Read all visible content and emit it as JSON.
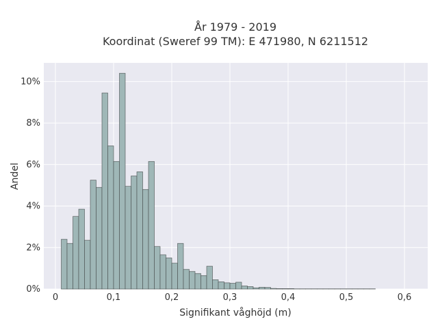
{
  "chart_data": {
    "type": "histogram",
    "title_line1": "År 1979 - 2019",
    "title_line2": "Koordinat (Sweref 99 TM): E 471980, N 6211512",
    "xlabel": "Signifikant våghöjd (m)",
    "ylabel": "Andel",
    "xlim": [
      -0.02,
      0.64
    ],
    "ylim": [
      0,
      0.109
    ],
    "x_ticks": [
      0,
      0.1,
      0.2,
      0.3,
      0.4,
      0.5,
      0.6
    ],
    "x_tick_labels": [
      "0",
      "0,1",
      "0,2",
      "0,3",
      "0,4",
      "0,5",
      "0,6"
    ],
    "y_ticks": [
      0,
      0.02,
      0.04,
      0.06,
      0.08,
      0.1
    ],
    "y_tick_labels": [
      "0%",
      "2%",
      "4%",
      "6%",
      "8%",
      "10%"
    ],
    "grid": true,
    "bin_width": 0.01,
    "bins_start": [
      0.01,
      0.02,
      0.03,
      0.04,
      0.05,
      0.06,
      0.07,
      0.08,
      0.09,
      0.1,
      0.11,
      0.12,
      0.13,
      0.14,
      0.15,
      0.16,
      0.17,
      0.18,
      0.19,
      0.2,
      0.21,
      0.22,
      0.23,
      0.24,
      0.25,
      0.26,
      0.27,
      0.28,
      0.29,
      0.3,
      0.31,
      0.32,
      0.33,
      0.34,
      0.35,
      0.36,
      0.37,
      0.38,
      0.39,
      0.4,
      0.41,
      0.42,
      0.43,
      0.44,
      0.45,
      0.46,
      0.47,
      0.48,
      0.49,
      0.5,
      0.51,
      0.52,
      0.53,
      0.54
    ],
    "values": [
      0.024,
      0.022,
      0.035,
      0.0385,
      0.0235,
      0.0525,
      0.049,
      0.0945,
      0.069,
      0.0615,
      0.104,
      0.0495,
      0.0545,
      0.0565,
      0.048,
      0.0615,
      0.0205,
      0.0165,
      0.015,
      0.0125,
      0.022,
      0.0095,
      0.0085,
      0.0075,
      0.0065,
      0.011,
      0.0045,
      0.0035,
      0.003,
      0.0028,
      0.0033,
      0.0015,
      0.0012,
      0.0006,
      0.0009,
      0.0008,
      0.0003,
      0.0002,
      0.0002,
      0.0002,
      0.0001,
      0.0001,
      0.0001,
      0.0001,
      0.0001,
      0.0001,
      0.0001,
      0.0001,
      0.0001,
      0.0001,
      0.0001,
      0.0001,
      0.0001,
      0.0001
    ],
    "colors": {
      "plot_bg": "#e9e9f1",
      "grid": "#ffffff",
      "bar_fill": "#9fb7b7",
      "bar_stroke": "#4a4f4f"
    }
  }
}
